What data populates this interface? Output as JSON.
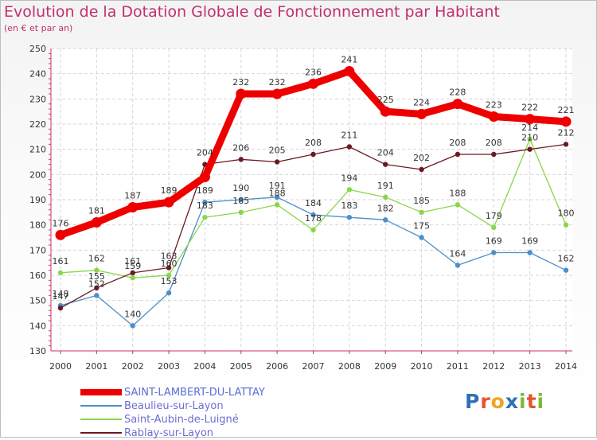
{
  "header": {
    "title": "Evolution de la Dotation Globale de Fonctionnement par Habitant",
    "subtitle": "(en € et par an)"
  },
  "logo": {
    "text": "Proxiti",
    "colors": [
      "#2f6fb5",
      "#e8532f",
      "#f1a323",
      "#2f6fb5",
      "#7cb93a",
      "#e8532f",
      "#7cb93a"
    ]
  },
  "chart_data": {
    "type": "line",
    "title": "Evolution de la Dotation Globale de Fonctionnement par Habitant",
    "subtitle": "(en € et par an)",
    "x": [
      2000,
      2001,
      2002,
      2003,
      2004,
      2005,
      2006,
      2007,
      2008,
      2009,
      2010,
      2011,
      2012,
      2013,
      2014
    ],
    "ylim": [
      130,
      250
    ],
    "yticks": [
      130,
      140,
      150,
      160,
      170,
      180,
      190,
      200,
      210,
      220,
      230,
      240,
      250
    ],
    "grid": true,
    "legend_position": "bottom",
    "series": [
      {
        "name": "SAINT-LAMBERT-DU-LATTAY",
        "color": "#ee0000",
        "values": [
          176,
          181,
          187,
          189,
          199,
          232,
          232,
          236,
          241,
          225,
          224,
          228,
          223,
          222,
          221
        ],
        "labels": [
          "176",
          "181",
          "187",
          "189",
          "",
          "232",
          "232",
          "236",
          "241",
          "225",
          "224",
          "228",
          "223",
          "222",
          "221"
        ]
      },
      {
        "name": "Beaulieu-sur-Layon",
        "color": "#4d8fc8",
        "values": [
          148,
          152,
          140,
          153,
          189,
          190,
          191,
          184,
          183,
          182,
          175,
          164,
          169,
          169,
          162
        ],
        "labels": [
          "148",
          "152",
          "140",
          "153",
          "189",
          "190",
          "191",
          "184",
          "183",
          "182",
          "175",
          "164",
          "169",
          "169",
          "162"
        ]
      },
      {
        "name": "Saint-Aubin-de-Luigné",
        "color": "#8ad64a",
        "values": [
          161,
          162,
          159,
          160,
          183,
          185,
          188,
          178,
          194,
          191,
          185,
          188,
          179,
          214,
          180
        ],
        "labels": [
          "161",
          "162",
          "159",
          "160",
          "183",
          "185",
          "188",
          "178",
          "194",
          "191",
          "185",
          "188",
          "179",
          "214",
          "180"
        ]
      },
      {
        "name": "Rablay-sur-Layon",
        "color": "#6b1a22",
        "values": [
          147,
          155,
          161,
          163,
          204,
          206,
          205,
          208,
          211,
          204,
          202,
          208,
          208,
          210,
          212
        ],
        "labels": [
          "147",
          "155",
          "161",
          "163",
          "204",
          "206",
          "205",
          "208",
          "211",
          "204",
          "202",
          "208",
          "208",
          "210",
          "212"
        ]
      }
    ]
  }
}
